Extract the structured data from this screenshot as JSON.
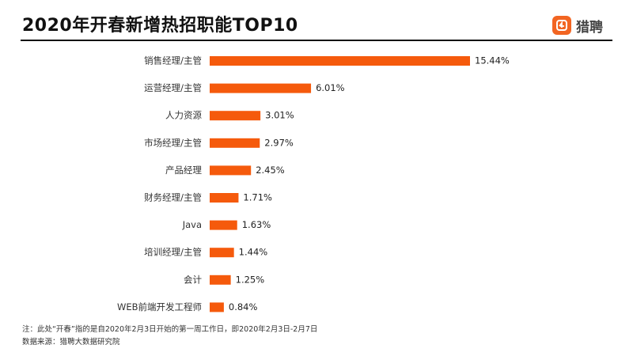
{
  "title": "2020年开春新增热招职能TOP10",
  "brand": {
    "name": "猎聘",
    "color": "#f26522",
    "icon": "logo-icon"
  },
  "chart_data": {
    "type": "bar",
    "orientation": "horizontal",
    "categories": [
      "销售经理/主管",
      "运营经理/主管",
      "人力资源",
      "市场经理/主管",
      "产品经理",
      "财务经理/主管",
      "Java",
      "培训经理/主管",
      "会计",
      "WEB前端开发工程师"
    ],
    "values": [
      15.44,
      6.01,
      3.01,
      2.97,
      2.45,
      1.71,
      1.63,
      1.44,
      1.25,
      0.84
    ],
    "value_labels": [
      "15.44%",
      "6.01%",
      "3.01%",
      "2.97%",
      "2.45%",
      "1.71%",
      "1.63%",
      "1.44%",
      "1.25%",
      "0.84%"
    ],
    "unit": "%",
    "bar_color": "#f55a0c",
    "grid": false,
    "legend": "none",
    "xlim": [
      0,
      15.44
    ]
  },
  "notes": {
    "line1": "注：此处“开春”指的是自2020年2月3日开始的第一周工作日，即2020年2月3日-2月7日",
    "line2": "数据来源：猎聘大数据研究院"
  }
}
